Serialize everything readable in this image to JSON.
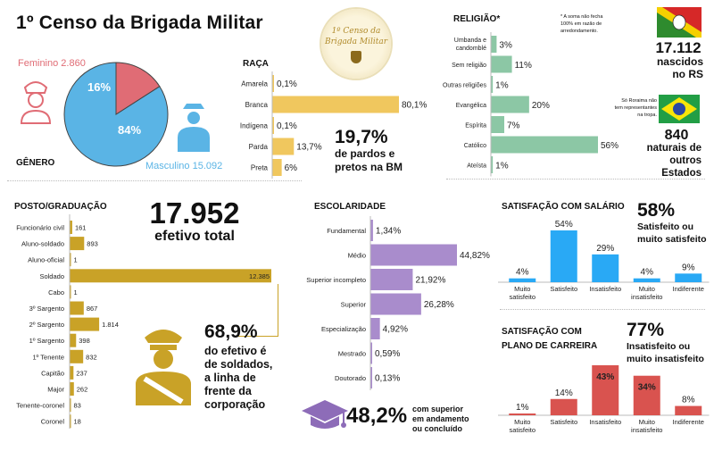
{
  "title": "1º Censo da Brigada Militar",
  "logo": {
    "line1": "1º Censo da",
    "line2": "Brigada Militar"
  },
  "colors": {
    "gold": "#f0c75e",
    "gold_dark": "#c9a227",
    "green": "#8cc7a5",
    "purple": "#a98ccc",
    "blue": "#29a9f5",
    "red": "#d9534f",
    "pink": "#e06c75",
    "sky": "#5ab4e5"
  },
  "genero": {
    "title": "GÊNERO",
    "feminino_label": "Feminino 2.860",
    "masculino_label": "Masculino 15.092",
    "fem_pct_label": "16%",
    "masc_pct_label": "84%"
  },
  "raca": {
    "title": "RAÇA",
    "highlight_value": "19,7%",
    "highlight_text_1": "de pardos e",
    "highlight_text_2": "pretos na BM"
  },
  "religiao": {
    "title": "RELIGIÃO*",
    "note_1": "* A soma não fecha",
    "note_2": "100% em razão de",
    "note_3": "arredondamento."
  },
  "naturais": {
    "rs_value": "17.112",
    "rs_text_1": "nascidos",
    "rs_text_2": "no RS",
    "note_1": "Só Roraima não",
    "note_2": "tem representantes",
    "note_3": "na tropa.",
    "other_value": "840",
    "other_text_1": "naturais de",
    "other_text_2": "outros",
    "other_text_3": "Estados"
  },
  "posto": {
    "title": "POSTO/GRADUAÇÃO",
    "total_value": "17.952",
    "total_label": "efetivo total",
    "highlight_value": "68,9%",
    "highlight_text_1": "do efetivo é",
    "highlight_text_2": "de soldados,",
    "highlight_text_3": "a linha de",
    "highlight_text_4": "frente da",
    "highlight_text_5": "corporação"
  },
  "escolaridade": {
    "title": "ESCOLARIDADE",
    "highlight_value": "48,2%",
    "highlight_text_1": "com superior",
    "highlight_text_2": "em andamento",
    "highlight_text_3": "ou concluído"
  },
  "salario": {
    "title": "SATISFAÇÃO COM SALÁRIO",
    "highlight_value": "58%",
    "highlight_text_1": "Satisfeito ou",
    "highlight_text_2": "muito satisfeito"
  },
  "carreira": {
    "title_1": "SATISFAÇÃO COM",
    "title_2": "PLANO DE CARREIRA",
    "highlight_value": "77%",
    "highlight_text_1": "Insatisfeito ou",
    "highlight_text_2": "muito insatisfeito"
  },
  "chart_data": [
    {
      "id": "genero",
      "type": "pie",
      "title": "GÊNERO",
      "slices": [
        {
          "label": "Feminino",
          "value": 2860,
          "pct": 16
        },
        {
          "label": "Masculino",
          "value": 15092,
          "pct": 84
        }
      ]
    },
    {
      "id": "raca",
      "type": "bar",
      "title": "RAÇA",
      "categories": [
        "Amarela",
        "Branca",
        "Indígena",
        "Parda",
        "Preta"
      ],
      "values": [
        0.1,
        80.1,
        0.1,
        13.7,
        6
      ],
      "labels": [
        "0,1%",
        "80,1%",
        "0,1%",
        "13,7%",
        "6%"
      ],
      "xlim": [
        0,
        80.1
      ]
    },
    {
      "id": "religiao",
      "type": "bar",
      "title": "RELIGIÃO*",
      "categories": [
        "Umbanda e candomblé",
        "Sem religião",
        "Outras religiões",
        "Evangélica",
        "Espírita",
        "Católico",
        "Ateísta"
      ],
      "values": [
        3,
        11,
        1,
        20,
        7,
        56,
        1
      ],
      "labels": [
        "3%",
        "11%",
        "1%",
        "20%",
        "7%",
        "56%",
        "1%"
      ],
      "xlim": [
        0,
        56
      ]
    },
    {
      "id": "posto",
      "type": "bar",
      "title": "POSTO/GRADUAÇÃO",
      "categories": [
        "Funcionário civil",
        "Aluno-soldado",
        "Aluno-oficial",
        "Soldado",
        "Cabo",
        "3º Sargento",
        "2º Sargento",
        "1º Sargento",
        "1º Tenente",
        "Capitão",
        "Major",
        "Tenente-coronel",
        "Coronel"
      ],
      "values": [
        161,
        893,
        1,
        12385,
        1,
        867,
        1814,
        398,
        832,
        237,
        262,
        83,
        18
      ],
      "labels": [
        "161",
        "893",
        "1",
        "12.385",
        "1",
        "867",
        "1.814",
        "398",
        "832",
        "237",
        "262",
        "83",
        "18"
      ],
      "xlim": [
        0,
        12385
      ]
    },
    {
      "id": "escolaridade",
      "type": "bar",
      "title": "ESCOLARIDADE",
      "categories": [
        "Fundamental",
        "Médio",
        "Superior incompleto",
        "Superior",
        "Especialização",
        "Mestrado",
        "Doutorado"
      ],
      "values": [
        1.34,
        44.82,
        21.92,
        26.28,
        4.92,
        0.59,
        0.13
      ],
      "labels": [
        "1,34%",
        "44,82%",
        "21,92%",
        "26,28%",
        "4,92%",
        "0,59%",
        "0,13%"
      ],
      "xlim": [
        0,
        44.82
      ]
    },
    {
      "id": "salario",
      "type": "bar",
      "title": "SATISFAÇÃO COM SALÁRIO",
      "categories": [
        "Muito satisfeito",
        "Satisfeito",
        "Insatisfeito",
        "Muito insatisfeito",
        "Indiferente"
      ],
      "values": [
        4,
        54,
        29,
        4,
        9
      ],
      "labels": [
        "4%",
        "54%",
        "29%",
        "4%",
        "9%"
      ],
      "ylim": [
        0,
        54
      ]
    },
    {
      "id": "carreira",
      "type": "bar",
      "title": "SATISFAÇÃO COM PLANO DE CARREIRA",
      "categories": [
        "Muito satisfeito",
        "Satisfeito",
        "Insatisfeito",
        "Muito insatisfeito",
        "Indiferente"
      ],
      "values": [
        1,
        14,
        43,
        34,
        8
      ],
      "labels": [
        "1%",
        "14%",
        "43%",
        "34%",
        "8%"
      ],
      "ylim": [
        0,
        43
      ]
    }
  ]
}
